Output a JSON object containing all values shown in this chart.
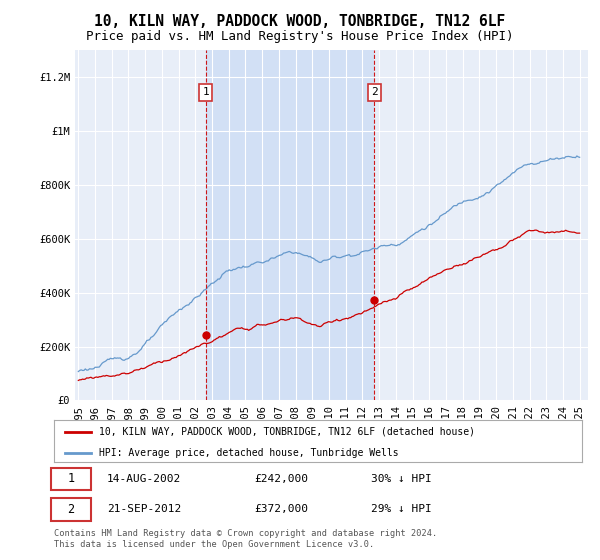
{
  "title": "10, KILN WAY, PADDOCK WOOD, TONBRIDGE, TN12 6LF",
  "subtitle": "Price paid vs. HM Land Registry's House Price Index (HPI)",
  "ylim": [
    0,
    1300000
  ],
  "yticks": [
    0,
    200000,
    400000,
    600000,
    800000,
    1000000,
    1200000
  ],
  "ytick_labels": [
    "£0",
    "£200K",
    "£400K",
    "£600K",
    "£800K",
    "£1M",
    "£1.2M"
  ],
  "background_color": "#ffffff",
  "plot_bg_color": "#e8eef8",
  "grid_color": "#ffffff",
  "sale_color": "#cc0000",
  "hpi_color": "#6699cc",
  "shade_color": "#d0dff5",
  "marker1_x": 2002.617,
  "marker1_y": 242000,
  "marker2_x": 2012.72,
  "marker2_y": 372000,
  "vline1_x": 2002.617,
  "vline2_x": 2012.72,
  "legend_sale": "10, KILN WAY, PADDOCK WOOD, TONBRIDGE, TN12 6LF (detached house)",
  "legend_hpi": "HPI: Average price, detached house, Tunbridge Wells",
  "ann1_date": "14-AUG-2002",
  "ann1_price": "£242,000",
  "ann1_hpi": "30% ↓ HPI",
  "ann2_date": "21-SEP-2012",
  "ann2_price": "£372,000",
  "ann2_hpi": "29% ↓ HPI",
  "footer": "Contains HM Land Registry data © Crown copyright and database right 2024.\nThis data is licensed under the Open Government Licence v3.0.",
  "title_fontsize": 10.5,
  "subtitle_fontsize": 9,
  "tick_fontsize": 7.5,
  "xlim_left": 1994.8,
  "xlim_right": 2025.5
}
